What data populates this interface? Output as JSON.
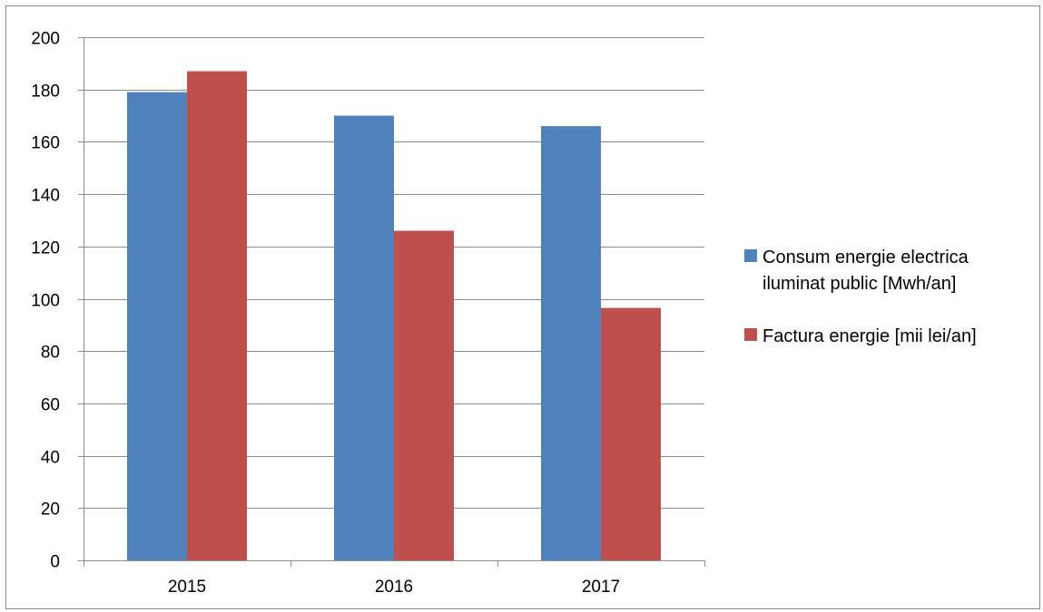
{
  "chart_data": {
    "type": "bar",
    "categories": [
      "2015",
      "2016",
      "2017"
    ],
    "series": [
      {
        "name": "Consum energie electrica iluminat public [Mwh/an]",
        "legend_lines": [
          "Consum energie electrica",
          "iluminat public [Mwh/an]"
        ],
        "color": "#4F81BD",
        "values": [
          179,
          170,
          166
        ]
      },
      {
        "name": "Factura energie [mii lei/an]",
        "legend_lines": [
          "Factura energie [mii lei/an]"
        ],
        "color": "#C0504D",
        "values": [
          187,
          126,
          96.5
        ]
      }
    ],
    "ylim": [
      0,
      200
    ],
    "yticks": [
      0,
      20,
      40,
      60,
      80,
      100,
      120,
      140,
      160,
      180,
      200
    ],
    "grid": true,
    "legend_position": "right",
    "title": "",
    "xlabel": "",
    "ylabel": ""
  }
}
